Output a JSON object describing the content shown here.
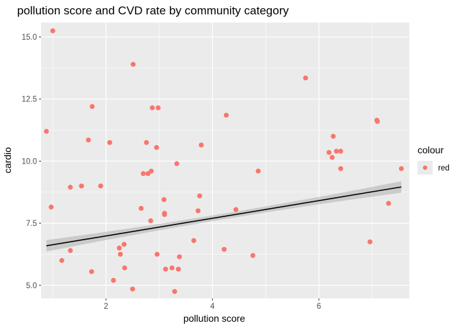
{
  "chart_data": {
    "type": "scatter",
    "title": "pollution score and CVD rate by community category",
    "xlabel": "pollution score",
    "ylabel": "cardio",
    "xlim": [
      0.78,
      7.7
    ],
    "ylim": [
      4.47,
      15.58
    ],
    "x_ticks": [
      2,
      4,
      6
    ],
    "x_tick_labels": [
      "2",
      "4",
      "6"
    ],
    "y_ticks": [
      5.0,
      7.5,
      10.0,
      12.5,
      15.0
    ],
    "y_tick_labels": [
      "5.0",
      "7.5",
      "10.0",
      "12.5",
      "15.0"
    ],
    "grid": true,
    "legend": {
      "title": "colour",
      "position": "right",
      "entries": [
        {
          "label": "red",
          "color": "#f8766d"
        }
      ]
    },
    "colors": {
      "point": "#f8766d",
      "panel": "#ebebeb",
      "grid": "#ffffff",
      "trend_line": "#000000",
      "ribbon": "#999999"
    },
    "series": [
      {
        "name": "red",
        "x": [
          0.88,
          1.0,
          0.97,
          1.17,
          1.33,
          1.33,
          1.54,
          1.67,
          1.73,
          1.74,
          1.9,
          2.07,
          2.14,
          2.25,
          2.27,
          2.34,
          2.35,
          2.5,
          2.51,
          2.66,
          2.7,
          2.76,
          2.79,
          2.84,
          2.85,
          2.87,
          2.95,
          2.96,
          2.98,
          3.09,
          3.1,
          3.1,
          3.12,
          3.24,
          3.29,
          3.33,
          3.36,
          3.38,
          3.65,
          3.73,
          3.76,
          3.79,
          4.22,
          4.26,
          4.44,
          4.76,
          4.86,
          5.75,
          6.19,
          6.25,
          6.27,
          6.33,
          6.41,
          6.41,
          6.96,
          7.09,
          7.1,
          7.31,
          7.55
        ],
        "y": [
          11.2,
          15.25,
          8.15,
          6.0,
          6.4,
          8.95,
          9.0,
          10.85,
          5.55,
          12.2,
          9.0,
          10.75,
          5.2,
          6.5,
          6.25,
          6.65,
          5.7,
          4.85,
          13.9,
          8.1,
          9.5,
          10.75,
          9.5,
          7.6,
          9.6,
          12.15,
          10.55,
          6.25,
          12.15,
          8.45,
          7.9,
          7.85,
          5.65,
          5.7,
          4.75,
          9.9,
          5.65,
          6.15,
          6.8,
          8.0,
          8.6,
          10.65,
          6.45,
          11.85,
          8.05,
          6.2,
          9.6,
          13.35,
          10.35,
          10.15,
          11.0,
          10.4,
          9.7,
          10.4,
          6.75,
          11.65,
          11.6,
          8.3,
          9.7
        ]
      }
    ],
    "trend": {
      "method": "linear",
      "x_range": [
        0.88,
        7.55
      ],
      "y_at_range": [
        6.59,
        8.96
      ],
      "ribbon_halfwidth": [
        0.23,
        0.0,
        0.23
      ]
    }
  }
}
